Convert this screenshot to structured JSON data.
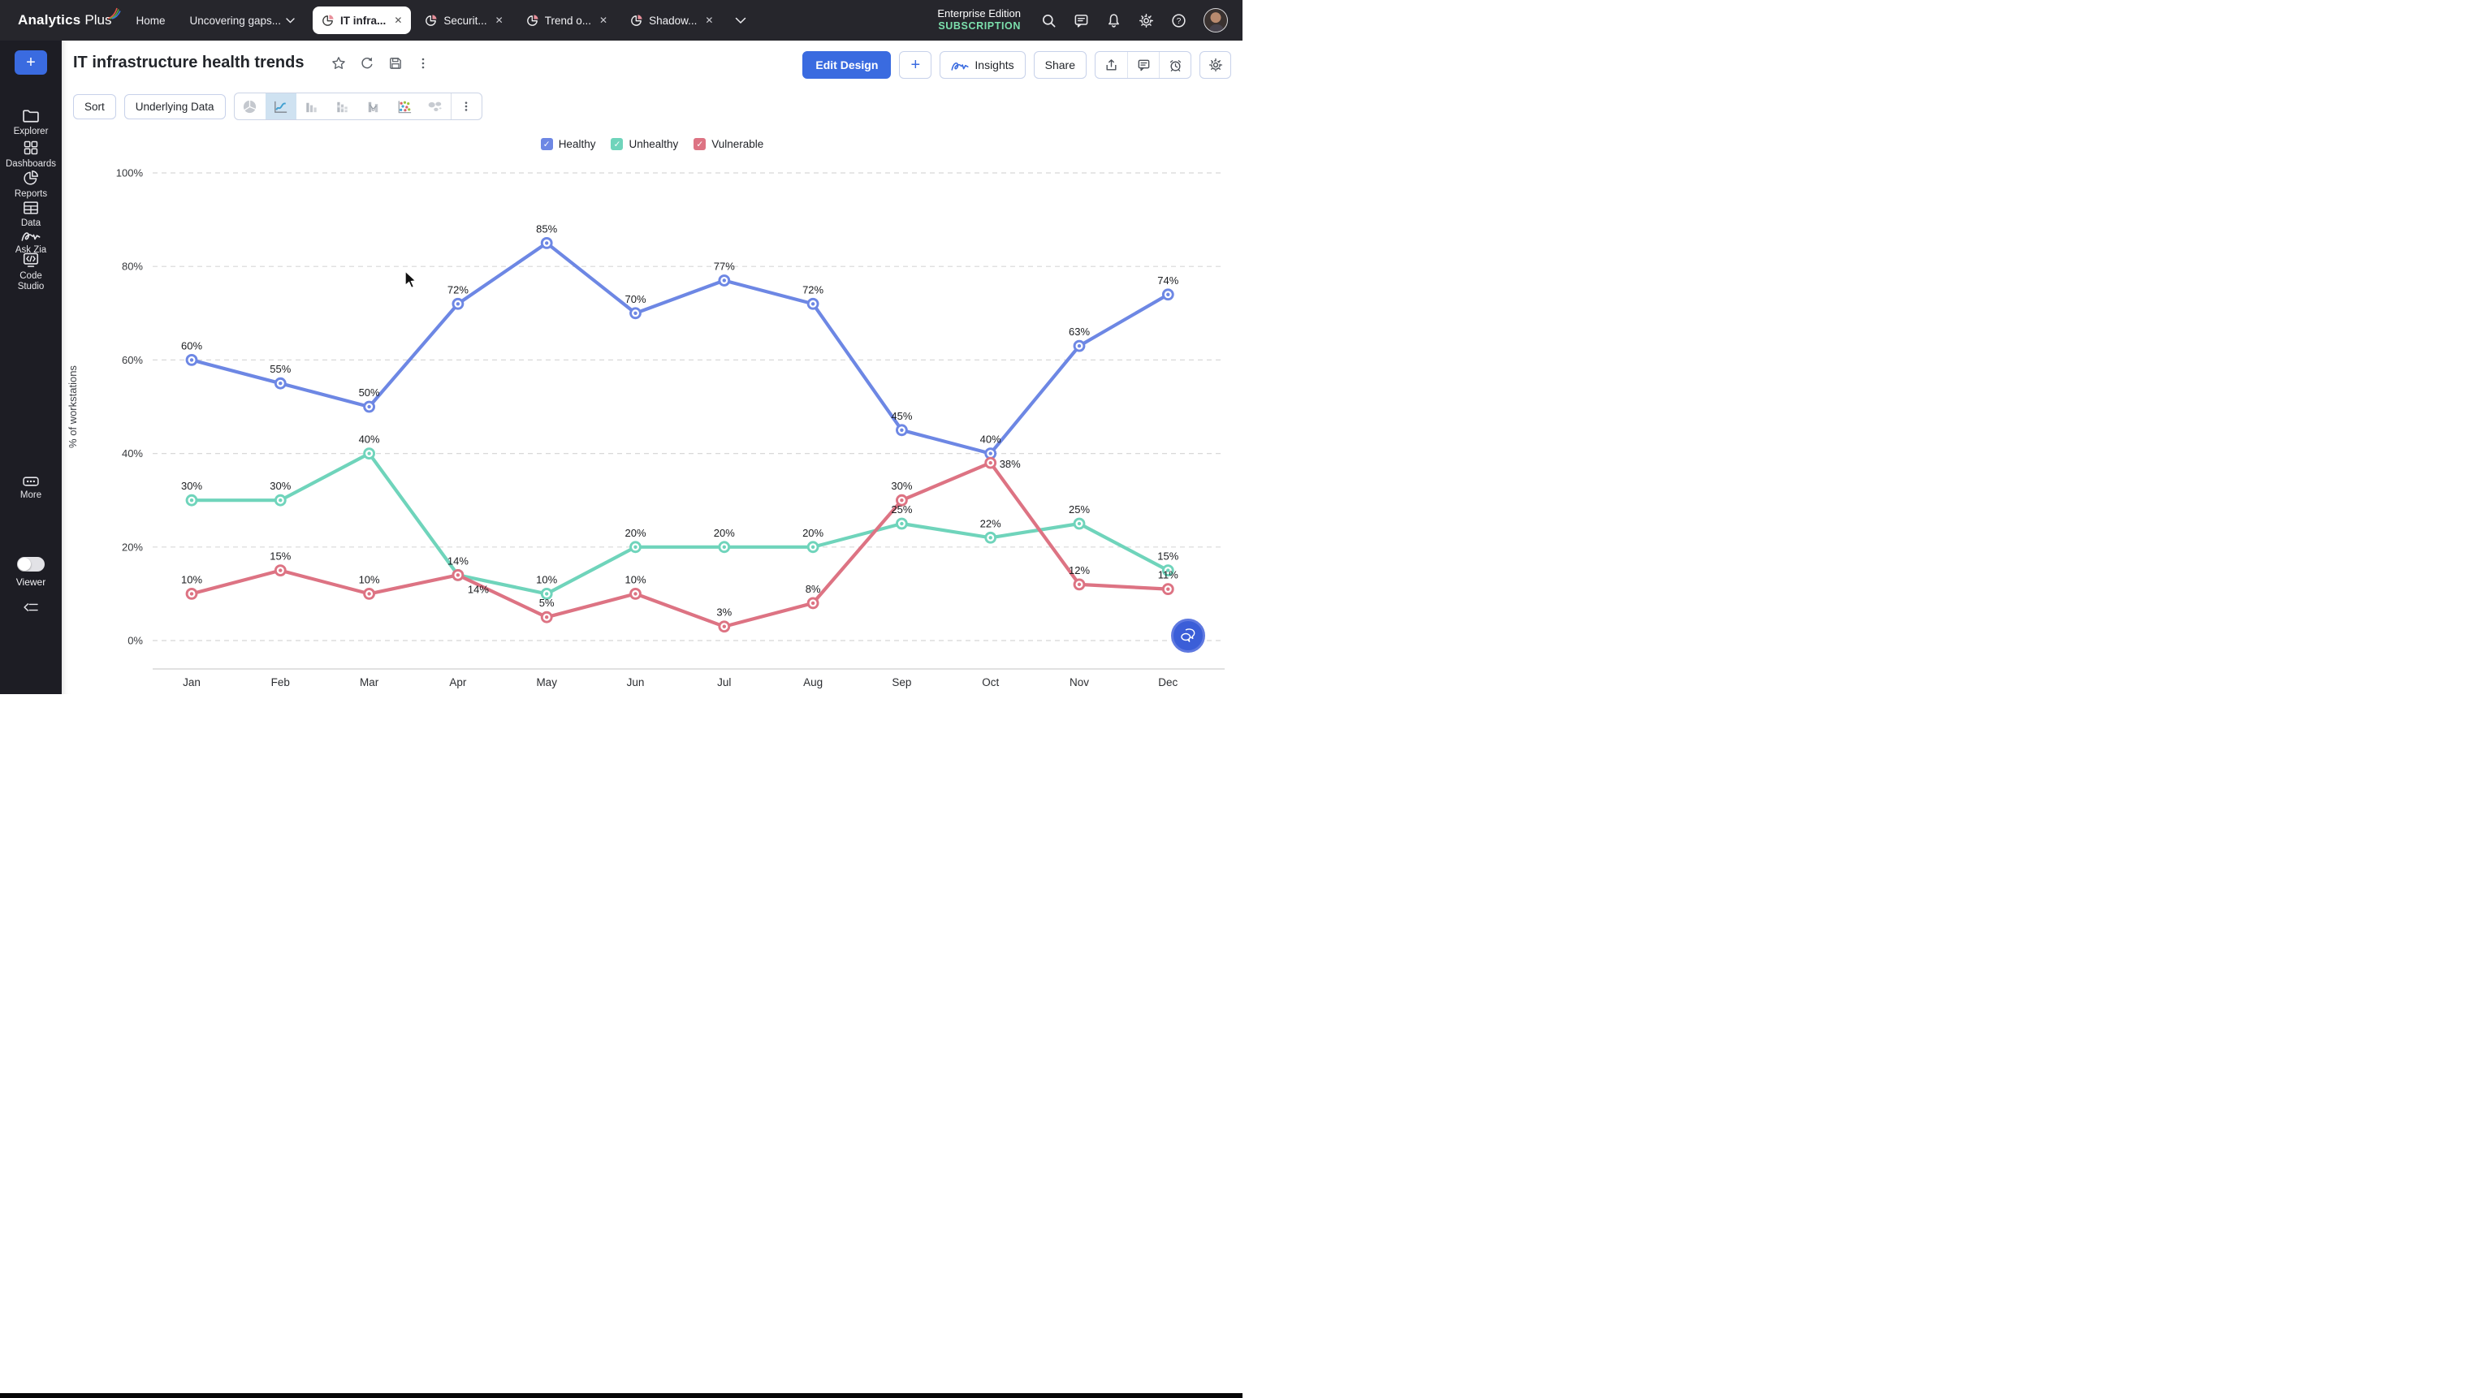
{
  "topbar": {
    "logo": {
      "bold": "Analytics",
      "light": "Plus"
    },
    "nav": [
      {
        "label": "Home"
      },
      {
        "label": "Uncovering gaps..."
      }
    ],
    "tabs": [
      {
        "label": "IT infra...",
        "active": true
      },
      {
        "label": "Securit...",
        "active": false
      },
      {
        "label": "Trend o...",
        "active": false
      },
      {
        "label": "Shadow...",
        "active": false
      }
    ],
    "edition": {
      "line1": "Enterprise Edition",
      "line2": "SUBSCRIPTION"
    },
    "icons": [
      "search-icon",
      "chat-icon",
      "bell-icon",
      "gear-icon",
      "help-icon",
      "avatar"
    ]
  },
  "sidebar": {
    "add_label": "+",
    "items": [
      {
        "label": "Explorer",
        "icon": "folder-icon"
      },
      {
        "label": "Dashboards",
        "icon": "grid-icon"
      },
      {
        "label": "Reports",
        "icon": "pie-icon"
      },
      {
        "label": "Data",
        "icon": "table-icon"
      },
      {
        "label": "Ask Zia",
        "icon": "zia-icon"
      },
      {
        "label": "Code Studio",
        "icon": "code-icon"
      },
      {
        "label": "More",
        "icon": "ellipsis-icon"
      }
    ],
    "viewer_label": "Viewer"
  },
  "report": {
    "title": "IT infrastructure health trends",
    "title_icons": [
      "star-icon",
      "refresh-icon",
      "save-icon",
      "kebab-icon"
    ],
    "actions": {
      "edit_design": "Edit Design",
      "add": "+",
      "insights": "Insights",
      "share": "Share",
      "icons": [
        "export-icon",
        "comment-icon",
        "alarm-icon",
        "settings-icon"
      ]
    },
    "toolbar": {
      "sort": "Sort",
      "underlying": "Underlying Data",
      "chart_types": [
        "pie",
        "line",
        "bar",
        "stacked-bar",
        "bar-line",
        "scatter",
        "map"
      ],
      "selected_chart_type": "line"
    }
  },
  "chart_data": {
    "type": "line",
    "title": "IT infrastructure health trends",
    "categories": [
      "Jan",
      "Feb",
      "Mar",
      "Apr",
      "May",
      "Jun",
      "Jul",
      "Aug",
      "Sep",
      "Oct",
      "Nov",
      "Dec"
    ],
    "series": [
      {
        "name": "Healthy",
        "color": "#6d87e4",
        "values": [
          60,
          55,
          50,
          72,
          85,
          70,
          77,
          72,
          45,
          40,
          63,
          74
        ]
      },
      {
        "name": "Unhealthy",
        "color": "#6fd4bb",
        "values": [
          30,
          30,
          40,
          14,
          10,
          20,
          20,
          20,
          25,
          22,
          25,
          15
        ]
      },
      {
        "name": "Vulnerable",
        "color": "#dd7383",
        "values": [
          10,
          15,
          10,
          14,
          5,
          10,
          3,
          8,
          30,
          38,
          12,
          11
        ]
      }
    ],
    "xlabel": "",
    "ylabel": "% of workstations",
    "yticks": [
      "100%",
      "80%",
      "60%",
      "40%",
      "20%",
      "0%"
    ],
    "ylim": [
      0,
      100
    ],
    "grid": true,
    "legend_position": "top",
    "data_labels": true
  },
  "colors": {
    "accent": "#3a6be0",
    "subscription_green": "#7ce0ad",
    "tab_slice_red": "#e8909b",
    "selected_charttype_bg": "#cfe2f1"
  }
}
